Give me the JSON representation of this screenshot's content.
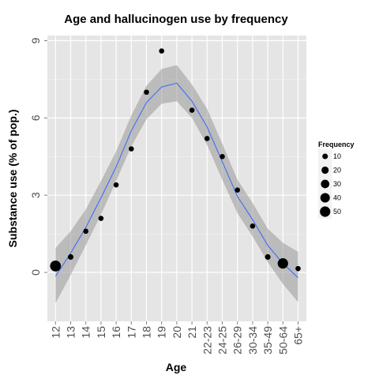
{
  "chart_data": {
    "type": "scatter",
    "title": "Age and hallucinogen use by frequency",
    "xlabel": "Age",
    "ylabel": "Substance use (% of pop.)",
    "categories": [
      "12",
      "13",
      "14",
      "15",
      "16",
      "17",
      "18",
      "19",
      "20",
      "21",
      "22-23",
      "24-25",
      "26-29",
      "30-34",
      "35-49",
      "50-64",
      "65+"
    ],
    "ylim": [
      -1.9,
      9.2
    ],
    "yticks": [
      0,
      3,
      6,
      9
    ],
    "grid": true,
    "legend_position": "right",
    "series": [
      {
        "type": "scatter",
        "x": [
          "12",
          "13",
          "14",
          "15",
          "16",
          "17",
          "18",
          "19",
          "21",
          "22-23",
          "24-25",
          "26-29",
          "30-34",
          "35-49",
          "50-64",
          "65+"
        ],
        "y": [
          0.25,
          0.6,
          1.6,
          2.1,
          3.4,
          4.8,
          7.0,
          8.6,
          6.3,
          5.2,
          4.5,
          3.2,
          1.8,
          0.6,
          0.35,
          0.15
        ],
        "size": [
          55,
          10,
          8,
          8,
          8,
          8,
          8,
          8,
          8,
          8,
          8,
          8,
          8,
          10,
          50,
          8
        ],
        "color": "#000000"
      },
      {
        "type": "line",
        "x": [
          "12",
          "13",
          "14",
          "15",
          "16",
          "17",
          "18",
          "19",
          "20",
          "21",
          "22-23",
          "24-25",
          "26-29",
          "30-34",
          "35-49",
          "50-64",
          "65+"
        ],
        "y": [
          -0.15,
          0.75,
          1.75,
          2.9,
          4.1,
          5.5,
          6.6,
          7.2,
          7.35,
          6.65,
          5.65,
          4.3,
          2.95,
          2.05,
          1.05,
          0.35,
          -0.2
        ],
        "lower": [
          -1.2,
          -0.1,
          1.05,
          2.25,
          3.55,
          4.9,
          5.95,
          6.55,
          6.65,
          6.0,
          4.95,
          3.6,
          2.3,
          1.4,
          0.4,
          -0.45,
          -1.15
        ],
        "upper": [
          0.95,
          1.6,
          2.45,
          3.55,
          4.7,
          6.1,
          7.25,
          7.9,
          8.05,
          7.3,
          6.35,
          5.0,
          3.6,
          2.7,
          1.7,
          1.15,
          0.8
        ],
        "color": "#3366FF",
        "band_color": "#999999"
      }
    ],
    "legend": {
      "title": "Frequency",
      "items": [
        {
          "label": "10",
          "value": 10
        },
        {
          "label": "20",
          "value": 20
        },
        {
          "label": "30",
          "value": 30
        },
        {
          "label": "40",
          "value": 40
        },
        {
          "label": "50",
          "value": 50
        }
      ]
    }
  }
}
